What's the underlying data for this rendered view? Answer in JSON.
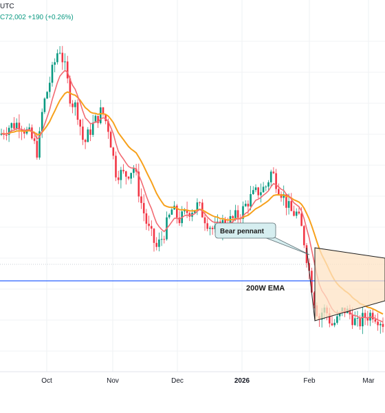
{
  "header": {
    "line1": "UTC",
    "line2": "C72,002 +190 (+0.26%)"
  },
  "colors": {
    "up": "#089981",
    "down": "#f23645",
    "ema_short": "#f26a72",
    "ema_long": "#f7a11c",
    "ema200": "#2962ff",
    "pennant_fill": "#fde3c4",
    "annotation_fill": "#d6eef0"
  },
  "chart_data": {
    "type": "candlestick",
    "title": "",
    "x_ticks": [
      "Oct",
      "Nov",
      "Dec",
      "2026",
      "Feb",
      "Mar"
    ],
    "x_tick_bold": "2026",
    "grid": true,
    "ylim": [
      56000,
      121000
    ],
    "candles": [],
    "series": [
      {
        "line": "ema_short"
      },
      {
        "line": "ema_long"
      }
    ],
    "horizontal_lines": [
      {
        "label": "200W EMA",
        "value": 80500
      }
    ],
    "annotations": [
      {
        "text": "Bear pennant"
      }
    ]
  }
}
